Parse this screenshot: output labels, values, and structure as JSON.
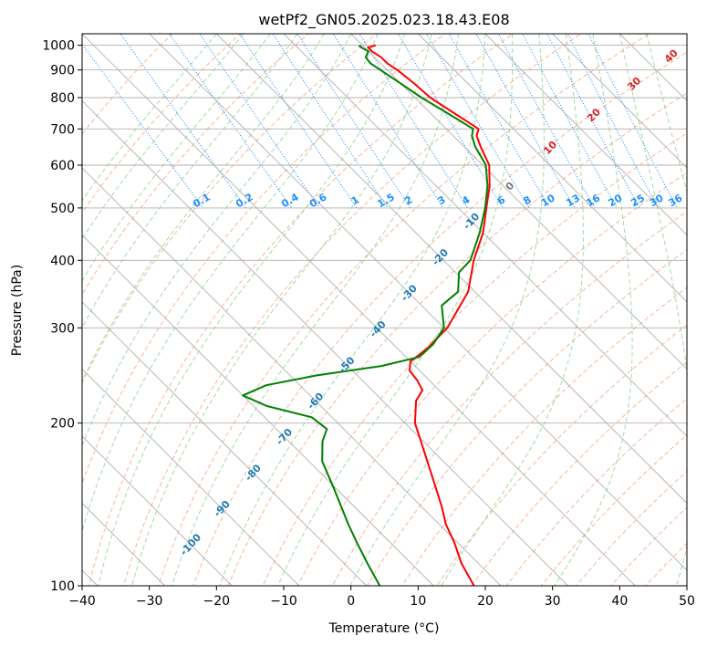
{
  "chart_data": {
    "type": "line",
    "subtype": "skew-t log-p diagram",
    "title": "wetPf2_GN05.2025.023.18.43.E08",
    "xlabel": "Temperature (°C)",
    "ylabel": "Pressure (hPa)",
    "xlim": [
      -40,
      50
    ],
    "ylim": [
      1050,
      100
    ],
    "yscale": "log",
    "grid": true,
    "x_ticks": [
      "−40",
      "−30",
      "−20",
      "−10",
      "0",
      "10",
      "20",
      "30",
      "40",
      "50"
    ],
    "y_ticks": [
      "100",
      "200",
      "300",
      "400",
      "500",
      "600",
      "700",
      "800",
      "900",
      "1000"
    ],
    "series": [
      {
        "color": "#ff0000",
        "points": [
          [
            1000,
            2.0
          ],
          [
            990,
            0.5
          ],
          [
            975,
            0.5
          ],
          [
            950,
            1.0
          ],
          [
            925,
            1.0
          ],
          [
            900,
            1.5
          ],
          [
            850,
            2.0
          ],
          [
            800,
            2.3
          ],
          [
            750,
            3.5
          ],
          [
            700,
            4.8
          ],
          [
            680,
            3.5
          ],
          [
            650,
            2.5
          ],
          [
            600,
            1.0
          ],
          [
            550,
            -2.0
          ],
          [
            500,
            -5.8
          ],
          [
            450,
            -10.0
          ],
          [
            400,
            -15.5
          ],
          [
            350,
            -21.0
          ],
          [
            300,
            -29.5
          ],
          [
            275,
            -35.5
          ],
          [
            260,
            -40.0
          ],
          [
            250,
            -41.5
          ],
          [
            240,
            -41.8
          ],
          [
            230,
            -42.5
          ],
          [
            220,
            -45.0
          ],
          [
            200,
            -48.5
          ],
          [
            180,
            -51.0
          ],
          [
            160,
            -53.8
          ],
          [
            140,
            -57.0
          ],
          [
            130,
            -59.0
          ],
          [
            120,
            -60.5
          ],
          [
            110,
            -62.5
          ],
          [
            100,
            -64.0
          ]
        ]
      },
      {
        "color": "#008000",
        "points": [
          [
            1000,
            -0.5
          ],
          [
            990,
            -0.5
          ],
          [
            975,
            0.0
          ],
          [
            950,
            -1.3
          ],
          [
            925,
            -1.5
          ],
          [
            900,
            -1.0
          ],
          [
            850,
            0.0
          ],
          [
            800,
            1.0
          ],
          [
            750,
            2.5
          ],
          [
            700,
            4.0
          ],
          [
            680,
            2.8
          ],
          [
            650,
            1.7
          ],
          [
            600,
            0.5
          ],
          [
            550,
            -2.3
          ],
          [
            500,
            -6.0
          ],
          [
            450,
            -10.5
          ],
          [
            400,
            -16.0
          ],
          [
            380,
            -19.5
          ],
          [
            350,
            -22.5
          ],
          [
            330,
            -27.0
          ],
          [
            300,
            -30.0
          ],
          [
            280,
            -34.0
          ],
          [
            265,
            -38.0
          ],
          [
            255,
            -45.0
          ],
          [
            245,
            -56.0
          ],
          [
            235,
            -65.0
          ],
          [
            225,
            -70.0
          ],
          [
            215,
            -68.0
          ],
          [
            205,
            -63.0
          ],
          [
            195,
            -62.5
          ],
          [
            185,
            -65.0
          ],
          [
            170,
            -68.0
          ],
          [
            150,
            -70.5
          ],
          [
            130,
            -73.5
          ],
          [
            120,
            -75.0
          ],
          [
            110,
            -76.5
          ],
          [
            100,
            -78.0
          ]
        ]
      }
    ],
    "isotherm_labels": [
      "-100",
      "-90",
      "-80",
      "-70",
      "-60",
      "-50",
      "-40",
      "-30",
      "-20",
      "-10"
    ],
    "mixing_ratio_labels": [
      "0.1",
      "0.2",
      "0.4",
      "0.6",
      "1",
      "1.5",
      "2",
      "3",
      "4",
      "6",
      "8",
      "10",
      "13",
      "16",
      "20",
      "25",
      "30",
      "36"
    ],
    "moist_adiabat_labels": [
      "0",
      "10",
      "20",
      "30",
      "40"
    ],
    "colors": {
      "temperature": "#ff0000",
      "dewpoint": "#008000",
      "isotherm_label": "#1f77b4",
      "mixing_ratio": "#1e90ff",
      "moist_adiabat_label": "#d62728",
      "dry_adiabat": "#f4a582",
      "moist_adiabat": "#8fd18f",
      "grid": "#b0b0b0"
    }
  }
}
